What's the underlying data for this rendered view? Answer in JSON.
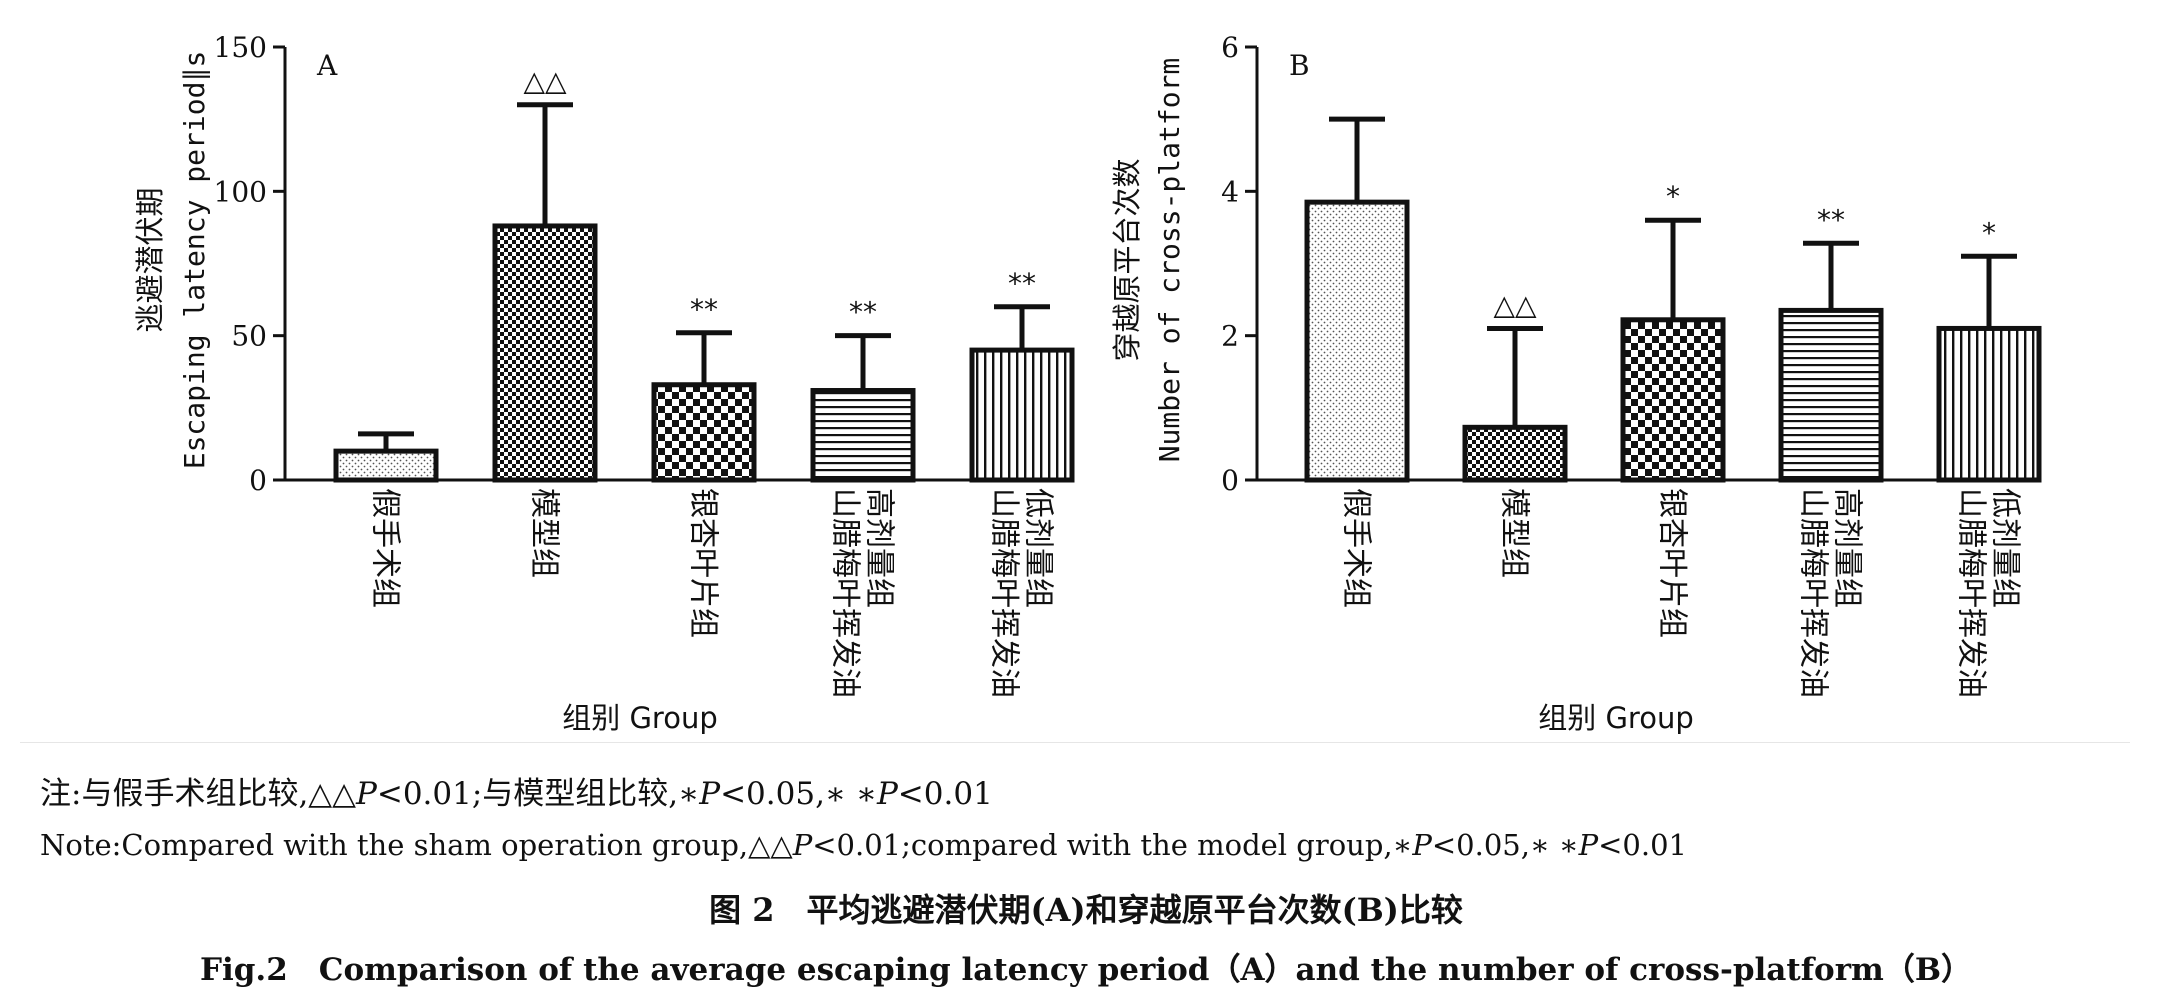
{
  "chart_data": [
    {
      "type": "bar",
      "panel_label": "A",
      "ylabel": "逃避潜伏期",
      "ylabel2": "Escaping latency period∥s",
      "xlabel": "组别 Group",
      "ylim": [
        0,
        150
      ],
      "yticks": [
        "0",
        "50",
        "100",
        "150"
      ],
      "categories": [
        [
          "假手术组"
        ],
        [
          "模型组"
        ],
        [
          "银杏叶片组"
        ],
        [
          "山腊梅叶挥发油",
          "高剂量组"
        ],
        [
          "山腊梅叶挥发油",
          "低剂量组"
        ]
      ],
      "values": [
        10,
        88,
        33,
        31,
        45
      ],
      "errors": [
        6,
        42,
        18,
        19,
        15
      ],
      "significance": [
        "",
        "△△",
        "**",
        "**",
        "**"
      ],
      "patterns": [
        "dots",
        "check-small",
        "check-large",
        "horizontal",
        "vertical"
      ]
    },
    {
      "type": "bar",
      "panel_label": "B",
      "ylabel": "穿越原平台次数",
      "ylabel2": "Number of cross-platform",
      "xlabel": "组别 Group",
      "ylim": [
        0,
        6
      ],
      "yticks": [
        "0",
        "2",
        "4",
        "6"
      ],
      "categories": [
        [
          "假手术组"
        ],
        [
          "模型组"
        ],
        [
          "银杏叶片组"
        ],
        [
          "山腊梅叶挥发油",
          "高剂量组"
        ],
        [
          "山腊梅叶挥发油",
          "低剂量组"
        ]
      ],
      "values": [
        3.85,
        0.73,
        2.22,
        2.35,
        2.1
      ],
      "errors": [
        1.15,
        1.37,
        1.38,
        0.93,
        1.0
      ],
      "significance": [
        "",
        "△△",
        "*",
        "**",
        "*"
      ],
      "patterns": [
        "dots",
        "check-small",
        "check-large",
        "horizontal",
        "vertical"
      ]
    }
  ],
  "notes": {
    "cn_prefix": "注:与假手术组比较,△△",
    "cn_p1": "P",
    "cn_mid": "<0.01;与模型组比较,∗",
    "cn_p2": "P",
    "cn_mid2": "<0.05,∗ ∗",
    "cn_p3": "P",
    "cn_end": "<0.01",
    "en_prefix": "Note:Compared with the sham operation group,△△",
    "en_p1": "P",
    "en_mid": "<0.01;compared with the model group,∗",
    "en_p2": "P",
    "en_mid2": "<0.05,∗ ∗",
    "en_p3": "P",
    "en_end": "<0.01"
  },
  "caption": {
    "cn": "图 2　平均逃避潜伏期(A)和穿越原平台次数(B)比较",
    "en": "Fig.2　Comparison of the average escaping latency period（A）and the number of cross-platform（B）"
  }
}
